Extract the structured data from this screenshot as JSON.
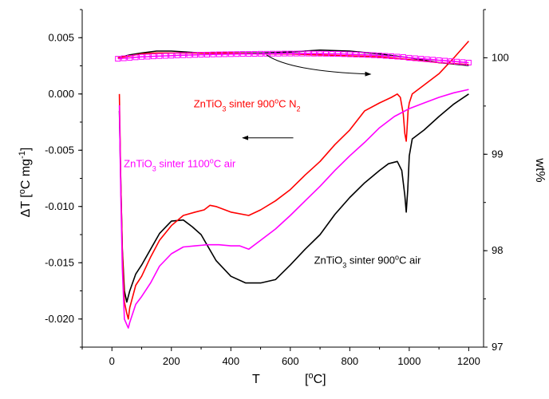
{
  "chart_data": {
    "type": "line",
    "xlabel": {
      "main": "T",
      "unit": "[",
      "unit_sup": "o",
      "unit_end": "C]"
    },
    "ylabel_left": {
      "pre": "ΔT     [",
      "sup1": "o",
      "mid": "C mg",
      "sup2": "-1",
      "post": "]"
    },
    "ylabel_right": "wt%",
    "xlim": [
      -100,
      1250
    ],
    "ylim_left": [
      -0.0225,
      0.0075
    ],
    "ylim_right": [
      97,
      100.5
    ],
    "x_ticks": [
      0,
      200,
      400,
      600,
      800,
      1000,
      1200
    ],
    "y_ticks_left": [
      0.005,
      0.0,
      -0.005,
      -0.01,
      -0.015,
      -0.02
    ],
    "y_tick_labels_left": [
      "0.005",
      "0.000",
      "-0.005",
      "-0.010",
      "-0.015",
      "-0.020"
    ],
    "y_ticks_right": [
      97,
      98,
      99,
      100
    ],
    "y_tick_labels_right": [
      "97",
      "98",
      "99",
      "100"
    ],
    "x_tick_labels": [
      "0",
      "200",
      "400",
      "600",
      "800",
      "1000",
      "1200"
    ],
    "colors": {
      "black": "#000000",
      "red": "#ff0000",
      "magenta": "#ff00ff"
    },
    "annotations": [
      {
        "id": "red",
        "color": "#ff0000",
        "pre": "ZnTiO",
        "sub1": "3",
        "mid": " sinter 900",
        "sup": "o",
        "post": "C N",
        "sub2": "2",
        "x": 275,
        "y": -0.0012
      },
      {
        "id": "magenta",
        "color": "#ff00ff",
        "pre": "ZnTiO",
        "sub1": "3",
        "mid": " sinter 1100",
        "sup": "o",
        "post": "C air",
        "sub2": "",
        "x": 40,
        "y": -0.0065
      },
      {
        "id": "black",
        "color": "#000000",
        "pre": "ZnTiO",
        "sub1": "3",
        "mid": " sinter 900",
        "sup": "o",
        "post": "C air",
        "sub2": "",
        "x": 680,
        "y": -0.0151
      }
    ],
    "series": [
      {
        "axis": "left",
        "color": "#000000",
        "x": [
          25,
          30,
          35,
          42,
          50,
          60,
          80,
          100,
          130,
          160,
          200,
          240,
          270,
          300,
          350,
          400,
          450,
          500,
          550,
          600,
          650,
          700,
          750,
          800,
          850,
          900,
          930,
          960,
          975,
          985,
          990,
          995,
          1000,
          1010,
          1050,
          1100,
          1150,
          1200
        ],
        "y": [
          -0.0015,
          -0.008,
          -0.0138,
          -0.0175,
          -0.0185,
          -0.0175,
          -0.016,
          -0.0152,
          -0.0138,
          -0.0124,
          -0.0113,
          -0.0112,
          -0.0118,
          -0.0125,
          -0.0148,
          -0.0162,
          -0.0168,
          -0.0168,
          -0.0165,
          -0.0152,
          -0.0138,
          -0.0125,
          -0.0107,
          -0.0092,
          -0.0079,
          -0.0068,
          -0.0062,
          -0.006,
          -0.0068,
          -0.009,
          -0.0105,
          -0.0085,
          -0.0055,
          -0.004,
          -0.0032,
          -0.002,
          -0.0009,
          0.0
        ]
      },
      {
        "axis": "left",
        "color": "#ff0000",
        "x": [
          25,
          30,
          35,
          42,
          50,
          55,
          60,
          80,
          100,
          130,
          160,
          200,
          240,
          280,
          310,
          330,
          350,
          400,
          460,
          500,
          550,
          600,
          650,
          700,
          750,
          800,
          850,
          900,
          940,
          960,
          970,
          980,
          985,
          990,
          993,
          996,
          1000,
          1010,
          1050,
          1100,
          1150,
          1200
        ],
        "y": [
          0.0,
          -0.008,
          -0.014,
          -0.0185,
          -0.0195,
          -0.02,
          -0.019,
          -0.017,
          -0.0162,
          -0.0145,
          -0.013,
          -0.0117,
          -0.0108,
          -0.0105,
          -0.0103,
          -0.0099,
          -0.01,
          -0.0105,
          -0.0108,
          -0.0103,
          -0.0095,
          -0.0085,
          -0.0072,
          -0.006,
          -0.0045,
          -0.0032,
          -0.0015,
          -0.0008,
          -0.0003,
          0.0,
          -0.0003,
          -0.0018,
          -0.0035,
          -0.0042,
          -0.003,
          -0.0015,
          -0.0008,
          0.0,
          0.0008,
          0.0018,
          0.0032,
          0.0047
        ]
      },
      {
        "axis": "left",
        "color": "#ff00ff",
        "x": [
          25,
          30,
          35,
          42,
          50,
          55,
          60,
          80,
          100,
          130,
          160,
          200,
          240,
          280,
          320,
          360,
          400,
          430,
          460,
          500,
          550,
          600,
          650,
          700,
          750,
          800,
          850,
          900,
          950,
          1000,
          1050,
          1100,
          1150,
          1200
        ],
        "y": [
          -0.001,
          -0.009,
          -0.0155,
          -0.02,
          -0.0205,
          -0.0208,
          -0.0203,
          -0.0187,
          -0.018,
          -0.0168,
          -0.0153,
          -0.0142,
          -0.0136,
          -0.0135,
          -0.0134,
          -0.0134,
          -0.0135,
          -0.0135,
          -0.0138,
          -0.013,
          -0.012,
          -0.0108,
          -0.0095,
          -0.0082,
          -0.0068,
          -0.0055,
          -0.0043,
          -0.003,
          -0.002,
          -0.0013,
          -0.0008,
          -0.0003,
          0.0001,
          0.0004
        ]
      },
      {
        "axis": "right",
        "color": "#000000",
        "x": [
          20,
          60,
          100,
          150,
          200,
          250,
          300,
          400,
          500,
          600,
          700,
          800,
          900,
          1000,
          1100,
          1200
        ],
        "y": [
          100.0,
          100.03,
          100.05,
          100.07,
          100.07,
          100.06,
          100.05,
          100.05,
          100.05,
          100.06,
          100.08,
          100.07,
          100.04,
          100.0,
          99.95,
          99.92
        ]
      },
      {
        "axis": "right",
        "color": "#ff0000",
        "x": [
          20,
          60,
          100,
          150,
          200,
          250,
          300,
          400,
          500,
          600,
          700,
          800,
          900,
          1000,
          1100,
          1200
        ],
        "y": [
          100.0,
          100.02,
          100.04,
          100.05,
          100.05,
          100.05,
          100.05,
          100.05,
          100.04,
          100.04,
          100.03,
          100.02,
          100.01,
          99.98,
          99.95,
          99.93
        ]
      },
      {
        "axis": "right",
        "color": "#ff00ff",
        "marker": "square",
        "x": [
          20,
          40,
          60,
          80,
          100,
          120,
          140,
          160,
          180,
          200,
          220,
          240,
          260,
          280,
          300,
          320,
          340,
          360,
          380,
          400,
          420,
          440,
          460,
          480,
          500,
          520,
          540,
          560,
          580,
          600,
          620,
          640,
          660,
          680,
          700,
          720,
          740,
          760,
          780,
          800,
          820,
          840,
          860,
          880,
          900,
          920,
          940,
          960,
          980,
          1000,
          1020,
          1040,
          1060,
          1080,
          1100,
          1120,
          1140,
          1160,
          1180,
          1200
        ],
        "y": [
          99.99,
          99.995,
          100.0,
          100.005,
          100.01,
          100.012,
          100.015,
          100.018,
          100.02,
          100.022,
          100.025,
          100.027,
          100.028,
          100.03,
          100.032,
          100.033,
          100.035,
          100.036,
          100.037,
          100.038,
          100.039,
          100.04,
          100.04,
          100.041,
          100.042,
          100.042,
          100.043,
          100.043,
          100.044,
          100.044,
          100.044,
          100.044,
          100.044,
          100.043,
          100.043,
          100.042,
          100.041,
          100.04,
          100.038,
          100.036,
          100.034,
          100.032,
          100.03,
          100.027,
          100.024,
          100.02,
          100.016,
          100.012,
          100.008,
          100.0,
          99.995,
          99.99,
          99.985,
          99.98,
          99.975,
          99.97,
          99.965,
          99.96,
          99.955,
          99.95
        ]
      }
    ],
    "arrows": [
      {
        "id": "arrow-right",
        "color": "#000000",
        "axis": "right",
        "points": [
          [
            520,
            100.03
          ],
          [
            600,
            99.86
          ],
          [
            870,
            99.83
          ]
        ]
      },
      {
        "id": "arrow-left",
        "color": "#000000",
        "axis": "left",
        "points": [
          [
            610,
            -0.0039
          ],
          [
            440,
            -0.0039
          ]
        ]
      }
    ]
  }
}
